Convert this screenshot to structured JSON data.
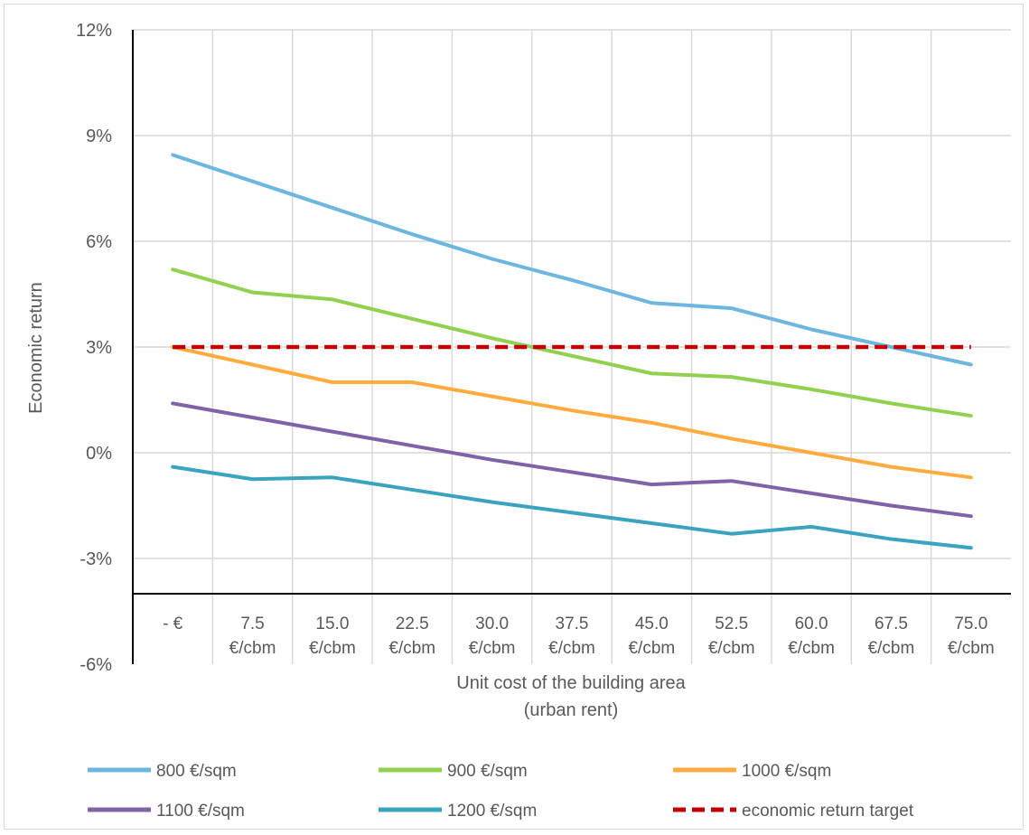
{
  "chart_data": {
    "type": "line",
    "title": "",
    "xlabel": [
      "Unit cost of the building area",
      "(urban rent)"
    ],
    "ylabel": "Economic return",
    "ylim": [
      -6,
      12
    ],
    "yticks": [
      {
        "value": 12,
        "label": "12%"
      },
      {
        "value": 9,
        "label": "9%"
      },
      {
        "value": 6,
        "label": "6%"
      },
      {
        "value": 3,
        "label": "3%"
      },
      {
        "value": 0,
        "label": "0%"
      },
      {
        "value": -3,
        "label": "-3%"
      },
      {
        "value": -6,
        "label": "-6%"
      }
    ],
    "categories": [
      [
        "-  €"
      ],
      [
        "7.5",
        "€/cbm"
      ],
      [
        "15.0",
        "€/cbm"
      ],
      [
        "22.5",
        "€/cbm"
      ],
      [
        "30.0",
        "€/cbm"
      ],
      [
        "37.5",
        "€/cbm"
      ],
      [
        "45.0",
        "€/cbm"
      ],
      [
        "52.5",
        "€/cbm"
      ],
      [
        "60.0",
        "€/cbm"
      ],
      [
        "67.5",
        "€/cbm"
      ],
      [
        "75.0",
        "€/cbm"
      ]
    ],
    "grid": true,
    "legend_position": "bottom",
    "series": [
      {
        "name": "800 €/sqm",
        "color": "#6cb6e0",
        "style": "solid",
        "values": [
          8.45,
          7.7,
          6.95,
          6.2,
          5.5,
          4.9,
          4.25,
          4.1,
          3.5,
          3.0,
          2.5
        ]
      },
      {
        "name": "900 €/sqm",
        "color": "#92d050",
        "style": "solid",
        "values": [
          5.2,
          4.55,
          4.35,
          3.8,
          3.25,
          2.75,
          2.25,
          2.15,
          1.8,
          1.4,
          1.05
        ]
      },
      {
        "name": "1000 €/sqm",
        "color": "#ffab40",
        "style": "solid",
        "values": [
          3.0,
          2.5,
          2.0,
          2.0,
          1.6,
          1.2,
          0.85,
          0.4,
          0.0,
          -0.4,
          -0.7
        ]
      },
      {
        "name": "1100 €/sqm",
        "color": "#7f62a8",
        "style": "solid",
        "values": [
          1.4,
          1.0,
          0.6,
          0.2,
          -0.2,
          -0.55,
          -0.9,
          -0.8,
          -1.15,
          -1.5,
          -1.8
        ]
      },
      {
        "name": "1200 €/sqm",
        "color": "#3aa3bf",
        "style": "solid",
        "values": [
          -0.4,
          -0.75,
          -0.7,
          -1.05,
          -1.4,
          -1.7,
          -2.0,
          -2.3,
          -2.1,
          -2.45,
          -2.7
        ]
      },
      {
        "name": "economic return target",
        "color": "#c00000",
        "style": "dashed",
        "values": [
          3,
          3,
          3,
          3,
          3,
          3,
          3,
          3,
          3,
          3,
          3
        ]
      }
    ]
  }
}
